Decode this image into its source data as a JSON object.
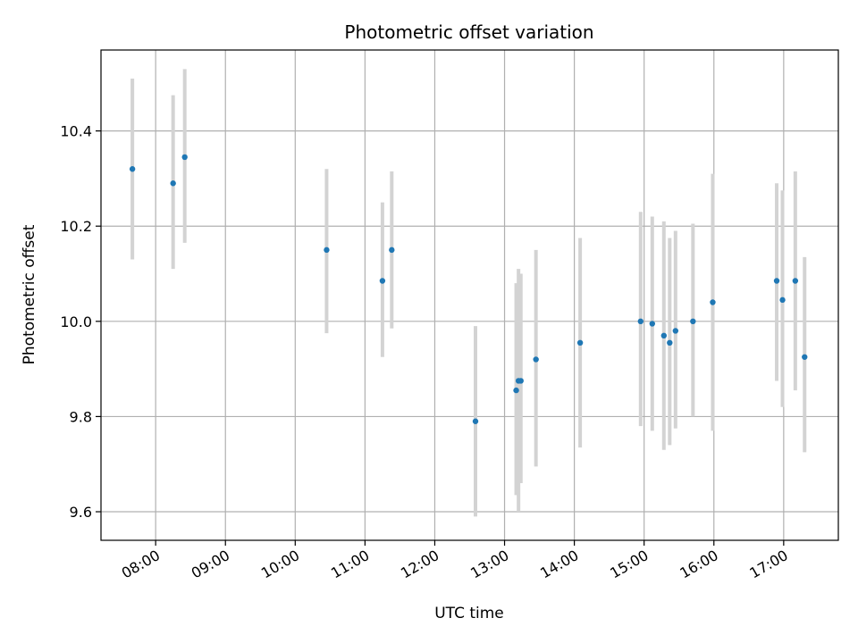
{
  "chart_data": {
    "type": "scatter",
    "title": "Photometric offset variation",
    "xlabel": "UTC time",
    "ylabel": "Photometric offset",
    "xlim": [
      "07:13",
      "17:47"
    ],
    "ylim": [
      9.54,
      10.57
    ],
    "grid": true,
    "x_ticks": [
      "08:00",
      "09:00",
      "10:00",
      "11:00",
      "12:00",
      "13:00",
      "14:00",
      "15:00",
      "16:00",
      "17:00"
    ],
    "y_ticks": [
      9.6,
      9.8,
      10.0,
      10.2,
      10.4
    ],
    "y_tick_labels": [
      "9.6",
      "9.8",
      "10.0",
      "10.2",
      "10.4"
    ],
    "series": [
      {
        "point_color": "#1f77b4",
        "errorbar_color": "#d3d3d3",
        "points": [
          {
            "x": "07:40",
            "y": 10.32,
            "yerr_low": 10.13,
            "yerr_high": 10.51
          },
          {
            "x": "08:15",
            "y": 10.29,
            "yerr_low": 10.11,
            "yerr_high": 10.475
          },
          {
            "x": "08:25",
            "y": 10.345,
            "yerr_low": 10.165,
            "yerr_high": 10.53
          },
          {
            "x": "10:27",
            "y": 10.15,
            "yerr_low": 9.975,
            "yerr_high": 10.32
          },
          {
            "x": "11:15",
            "y": 10.085,
            "yerr_low": 9.925,
            "yerr_high": 10.25
          },
          {
            "x": "11:23",
            "y": 10.15,
            "yerr_low": 9.985,
            "yerr_high": 10.315
          },
          {
            "x": "12:35",
            "y": 9.79,
            "yerr_low": 9.59,
            "yerr_high": 9.99
          },
          {
            "x": "13:10",
            "y": 9.855,
            "yerr_low": 9.635,
            "yerr_high": 10.08
          },
          {
            "x": "13:12",
            "y": 9.875,
            "yerr_low": 9.6,
            "yerr_high": 10.11
          },
          {
            "x": "13:14",
            "y": 9.875,
            "yerr_low": 9.66,
            "yerr_high": 10.1
          },
          {
            "x": "13:27",
            "y": 9.92,
            "yerr_low": 9.695,
            "yerr_high": 10.15
          },
          {
            "x": "14:05",
            "y": 9.955,
            "yerr_low": 9.735,
            "yerr_high": 10.175
          },
          {
            "x": "14:57",
            "y": 10.0,
            "yerr_low": 9.78,
            "yerr_high": 10.23
          },
          {
            "x": "15:07",
            "y": 9.995,
            "yerr_low": 9.77,
            "yerr_high": 10.22
          },
          {
            "x": "15:17",
            "y": 9.97,
            "yerr_low": 9.73,
            "yerr_high": 10.21
          },
          {
            "x": "15:22",
            "y": 9.955,
            "yerr_low": 9.74,
            "yerr_high": 10.175
          },
          {
            "x": "15:27",
            "y": 9.98,
            "yerr_low": 9.775,
            "yerr_high": 10.19
          },
          {
            "x": "15:42",
            "y": 10.0,
            "yerr_low": 9.8,
            "yerr_high": 10.205
          },
          {
            "x": "15:59",
            "y": 10.04,
            "yerr_low": 9.77,
            "yerr_high": 10.31
          },
          {
            "x": "16:54",
            "y": 10.085,
            "yerr_low": 9.875,
            "yerr_high": 10.29
          },
          {
            "x": "16:59",
            "y": 10.045,
            "yerr_low": 9.82,
            "yerr_high": 10.275
          },
          {
            "x": "17:10",
            "y": 10.085,
            "yerr_low": 9.855,
            "yerr_high": 10.315
          },
          {
            "x": "17:18",
            "y": 9.925,
            "yerr_low": 9.725,
            "yerr_high": 10.135
          }
        ]
      }
    ]
  }
}
